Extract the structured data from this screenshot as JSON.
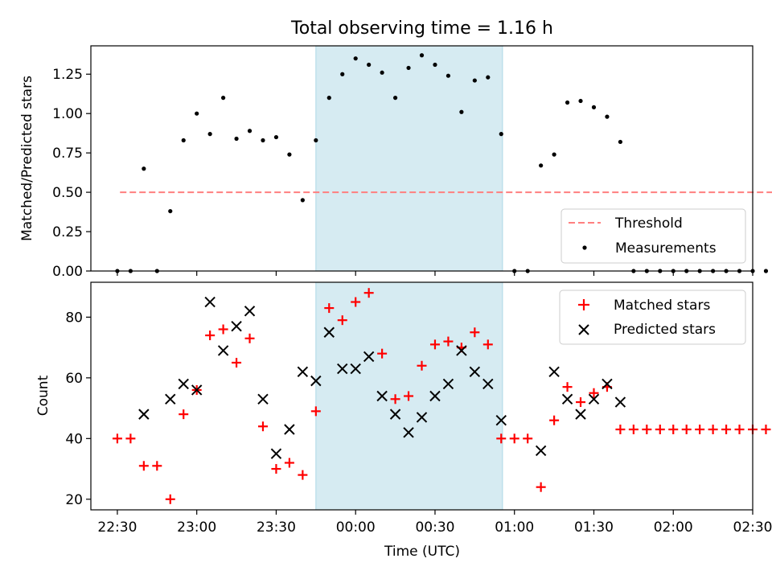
{
  "title": "Total observing time = 1.16 h",
  "colors": {
    "threshold": "#ff7f7f",
    "measurements": "#000000",
    "matched": "#ff0000",
    "predicted": "#000000",
    "span": "#add8e6"
  },
  "chart_data": [
    {
      "type": "scatter",
      "panel": "top",
      "ylabel": "Matched/Predicted stars",
      "xlim": [
        -10,
        240
      ],
      "ylim": [
        0,
        1.43
      ],
      "yticks": [
        0,
        0.25,
        0.5,
        0.75,
        1.0,
        1.25
      ],
      "ytick_labels": [
        "0.00",
        "0.25",
        "0.50",
        "0.75",
        "1.00",
        "1.25"
      ],
      "legend_position": "lower right",
      "legend": {
        "threshold": "Threshold",
        "measurements": "Measurements"
      },
      "threshold": {
        "name": "Threshold",
        "y": 0.5,
        "x_range": [
          1,
          248
        ]
      },
      "span_x": [
        75,
        145.5
      ],
      "x": [
        0,
        5,
        10,
        15,
        20,
        25,
        30,
        35,
        40,
        45,
        50,
        55,
        60,
        65,
        70,
        75,
        80,
        85,
        90,
        95,
        100,
        105,
        110,
        115,
        120,
        125,
        130,
        135,
        140,
        145,
        150,
        155,
        160,
        165,
        170,
        175,
        180,
        185,
        190,
        195,
        200,
        205,
        210,
        215,
        220,
        225,
        230,
        235,
        240,
        245
      ],
      "series": [
        {
          "name": "Measurements",
          "values": [
            0,
            0,
            0.65,
            0,
            0.38,
            0.83,
            1.0,
            0.87,
            1.1,
            0.84,
            0.89,
            0.83,
            0.85,
            0.74,
            0.45,
            0.83,
            1.1,
            1.25,
            1.35,
            1.31,
            1.26,
            1.1,
            1.29,
            1.37,
            1.31,
            1.24,
            1.01,
            1.21,
            1.23,
            0.87,
            0,
            0,
            0.67,
            0.74,
            1.07,
            1.08,
            1.04,
            0.98,
            0.82,
            0,
            0,
            0,
            0,
            0,
            0,
            0,
            0,
            0,
            0,
            0
          ]
        }
      ]
    },
    {
      "type": "scatter",
      "panel": "bottom",
      "xlabel": "Time (UTC)",
      "ylabel": "Count",
      "xlim": [
        -10,
        240
      ],
      "ylim": [
        16.5,
        91.5
      ],
      "yticks": [
        20,
        40,
        60,
        80
      ],
      "xticks": [
        0,
        30,
        60,
        90,
        120,
        150,
        180,
        210,
        240
      ],
      "xtick_labels": [
        "22:30",
        "23:00",
        "23:30",
        "00:00",
        "00:30",
        "01:00",
        "01:30",
        "02:00",
        "02:30"
      ],
      "legend_position": "upper right",
      "legend": {
        "matched": "Matched stars",
        "predicted": "Predicted stars"
      },
      "span_x": [
        75,
        145.5
      ],
      "x": [
        0,
        5,
        10,
        15,
        20,
        25,
        30,
        35,
        40,
        45,
        50,
        55,
        60,
        65,
        70,
        75,
        80,
        85,
        90,
        95,
        100,
        105,
        110,
        115,
        120,
        125,
        130,
        135,
        140,
        145,
        150,
        155,
        160,
        165,
        170,
        175,
        180,
        185,
        190,
        195,
        200,
        205,
        210,
        215,
        220,
        225,
        230,
        235,
        240,
        245
      ],
      "series": [
        {
          "name": "Matched stars",
          "values": [
            40,
            40,
            31,
            31,
            20,
            48,
            56,
            74,
            76,
            65,
            73,
            44,
            30,
            32,
            28,
            49,
            83,
            79,
            85,
            88,
            68,
            53,
            54,
            64,
            71,
            72,
            70,
            75,
            71,
            40,
            40,
            40,
            24,
            46,
            57,
            52,
            55,
            57,
            43,
            43,
            43,
            43,
            43,
            43,
            43,
            43,
            43,
            43,
            43,
            43
          ]
        },
        {
          "name": "Predicted stars",
          "values": [
            null,
            null,
            48,
            null,
            53,
            58,
            56,
            85,
            69,
            77,
            82,
            53,
            35,
            43,
            62,
            59,
            75,
            63,
            63,
            67,
            54,
            48,
            42,
            47,
            54,
            58,
            69,
            62,
            58,
            46,
            null,
            null,
            36,
            62,
            53,
            48,
            53,
            58,
            52,
            null,
            null,
            null,
            null,
            null,
            null,
            null,
            null,
            null,
            null,
            null
          ]
        }
      ]
    }
  ]
}
